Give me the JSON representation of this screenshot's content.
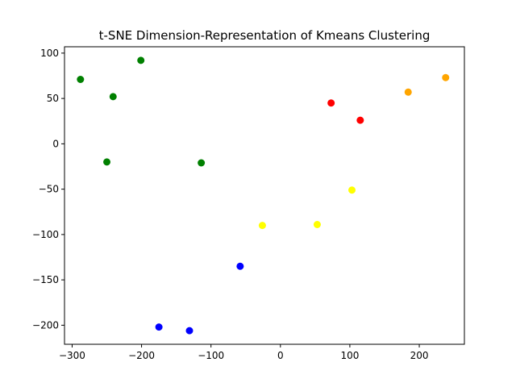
{
  "chart_data": {
    "type": "scatter",
    "title": "t-SNE Dimension-Representation of Kmeans Clustering",
    "xlabel": "",
    "ylabel": "",
    "xlim": [
      -311,
      265
    ],
    "ylim": [
      -221,
      107
    ],
    "x_ticks": [
      -300,
      -200,
      -100,
      0,
      100,
      200
    ],
    "y_ticks": [
      100,
      50,
      0,
      -50,
      -100,
      -150,
      -200
    ],
    "grid": false,
    "legend": "none",
    "series": [
      {
        "color": "#008000",
        "points": [
          {
            "x": -288,
            "y": 71
          },
          {
            "x": -201,
            "y": 92
          },
          {
            "x": -241,
            "y": 52
          },
          {
            "x": -250,
            "y": -20
          },
          {
            "x": -114,
            "y": -21
          }
        ]
      },
      {
        "color": "#ff0000",
        "points": [
          {
            "x": 73,
            "y": 45
          },
          {
            "x": 115,
            "y": 26
          }
        ]
      },
      {
        "color": "#ffa500",
        "points": [
          {
            "x": 184,
            "y": 57
          },
          {
            "x": 238,
            "y": 73
          }
        ]
      },
      {
        "color": "#ffff00",
        "points": [
          {
            "x": 103,
            "y": -51
          },
          {
            "x": 53,
            "y": -89
          },
          {
            "x": -26,
            "y": -90
          }
        ]
      },
      {
        "color": "#0000ff",
        "points": [
          {
            "x": -58,
            "y": -135
          },
          {
            "x": -175,
            "y": -202
          },
          {
            "x": -131,
            "y": -206
          }
        ]
      }
    ]
  }
}
